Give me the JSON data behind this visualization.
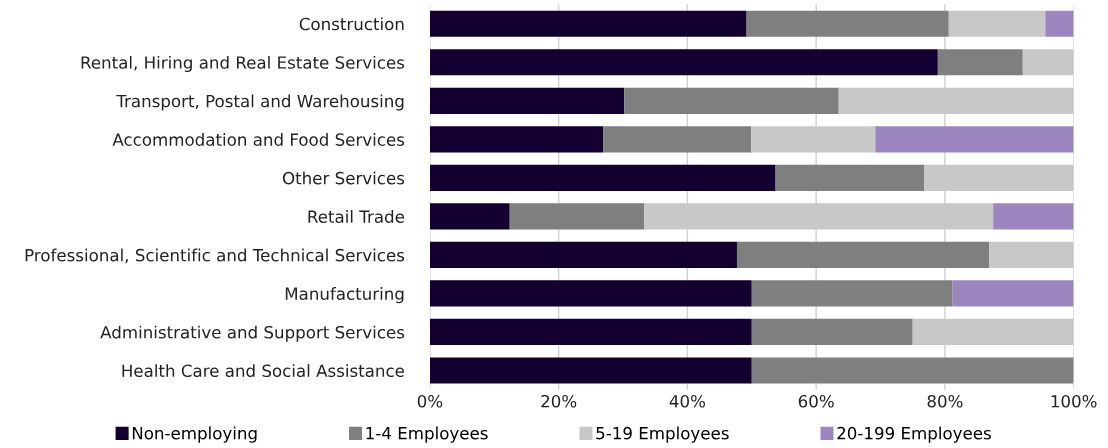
{
  "chart_data": {
    "type": "bar",
    "orientation": "horizontal",
    "stacked": true,
    "categories": [
      "Construction",
      "Rental, Hiring and Real Estate Services",
      "Transport, Postal and Warehousing",
      "Accommodation and Food Services",
      "Other Services",
      "Retail Trade",
      "Professional, Scientific and Technical Services",
      "Manufacturing",
      "Administrative and Support Services",
      "Health Care and Social Assistance"
    ],
    "series": [
      {
        "name": "Non-employing",
        "color": "#130030",
        "values": [
          49.2,
          78.9,
          30.2,
          26.9,
          53.7,
          12.4,
          47.7,
          50,
          50,
          50
        ]
      },
      {
        "name": "1-4 Employees",
        "color": "#7f7f7f",
        "values": [
          31.4,
          13.2,
          33.3,
          23.0,
          23.1,
          20.9,
          39.2,
          31.2,
          25,
          50
        ]
      },
      {
        "name": "5-19 Employees",
        "color": "#c8c8c8",
        "values": [
          15.0,
          7.9,
          36.5,
          19.3,
          23.2,
          54.2,
          13.1,
          0,
          25,
          0
        ]
      },
      {
        "name": "20-199 Employees",
        "color": "#9c86bf",
        "values": [
          4.4,
          0,
          0,
          30.8,
          0,
          12.5,
          0,
          18.8,
          0,
          0
        ]
      }
    ],
    "xlim": [
      0,
      100
    ],
    "xticks": [
      {
        "value": 0,
        "label": "0%"
      },
      {
        "value": 20,
        "label": "20%"
      },
      {
        "value": 40,
        "label": "40%"
      },
      {
        "value": 60,
        "label": "60%"
      },
      {
        "value": 80,
        "label": "80%"
      },
      {
        "value": 100,
        "label": "100%"
      }
    ],
    "grid": "x",
    "legend": "bottom"
  }
}
